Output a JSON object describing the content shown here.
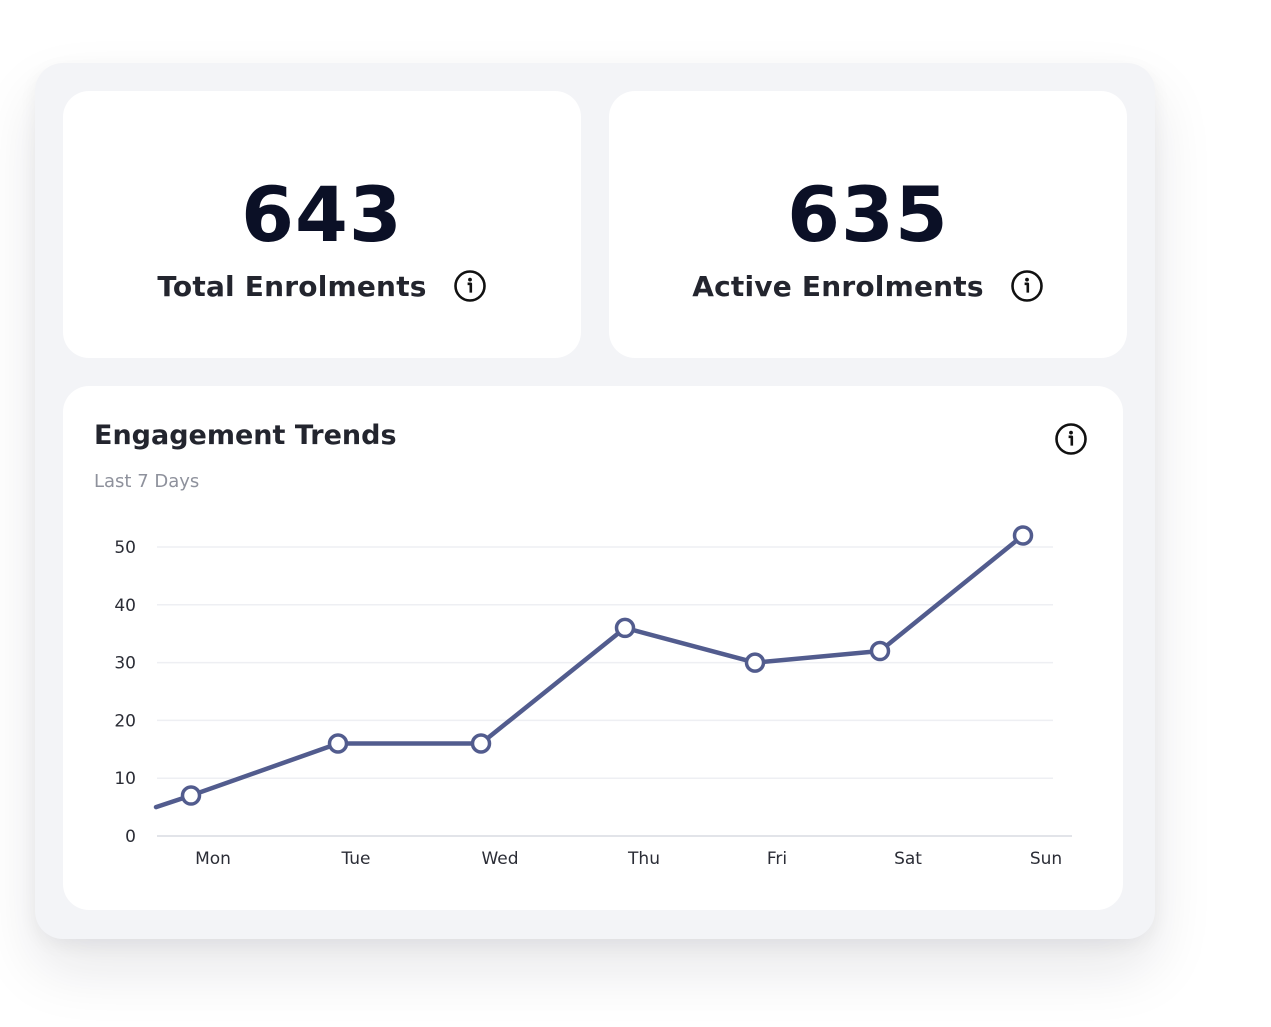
{
  "stats": [
    {
      "value": "643",
      "label": "Total Enrolments"
    },
    {
      "value": "635",
      "label": "Active Enrolments"
    }
  ],
  "chart": {
    "title": "Engagement Trends",
    "subtitle": "Last 7 Days"
  },
  "icons": {
    "info": "info-circle-icon"
  },
  "colors": {
    "line": "#525c8e",
    "text_dark": "#0b1026",
    "panel_bg": "#f3f4f7"
  },
  "chart_data": {
    "type": "line",
    "categories": [
      "Mon",
      "Tue",
      "Wed",
      "Thu",
      "Fri",
      "Sat",
      "Sun"
    ],
    "values": [
      7,
      16,
      16,
      36,
      30,
      32,
      52
    ],
    "line_start_value": 5,
    "yticks": [
      0,
      10,
      20,
      30,
      40,
      50
    ],
    "ylim": [
      0,
      50
    ],
    "grid": true,
    "title": "Engagement Trends",
    "subtitle": "Last 7 Days",
    "xlabel": "",
    "ylabel": ""
  }
}
